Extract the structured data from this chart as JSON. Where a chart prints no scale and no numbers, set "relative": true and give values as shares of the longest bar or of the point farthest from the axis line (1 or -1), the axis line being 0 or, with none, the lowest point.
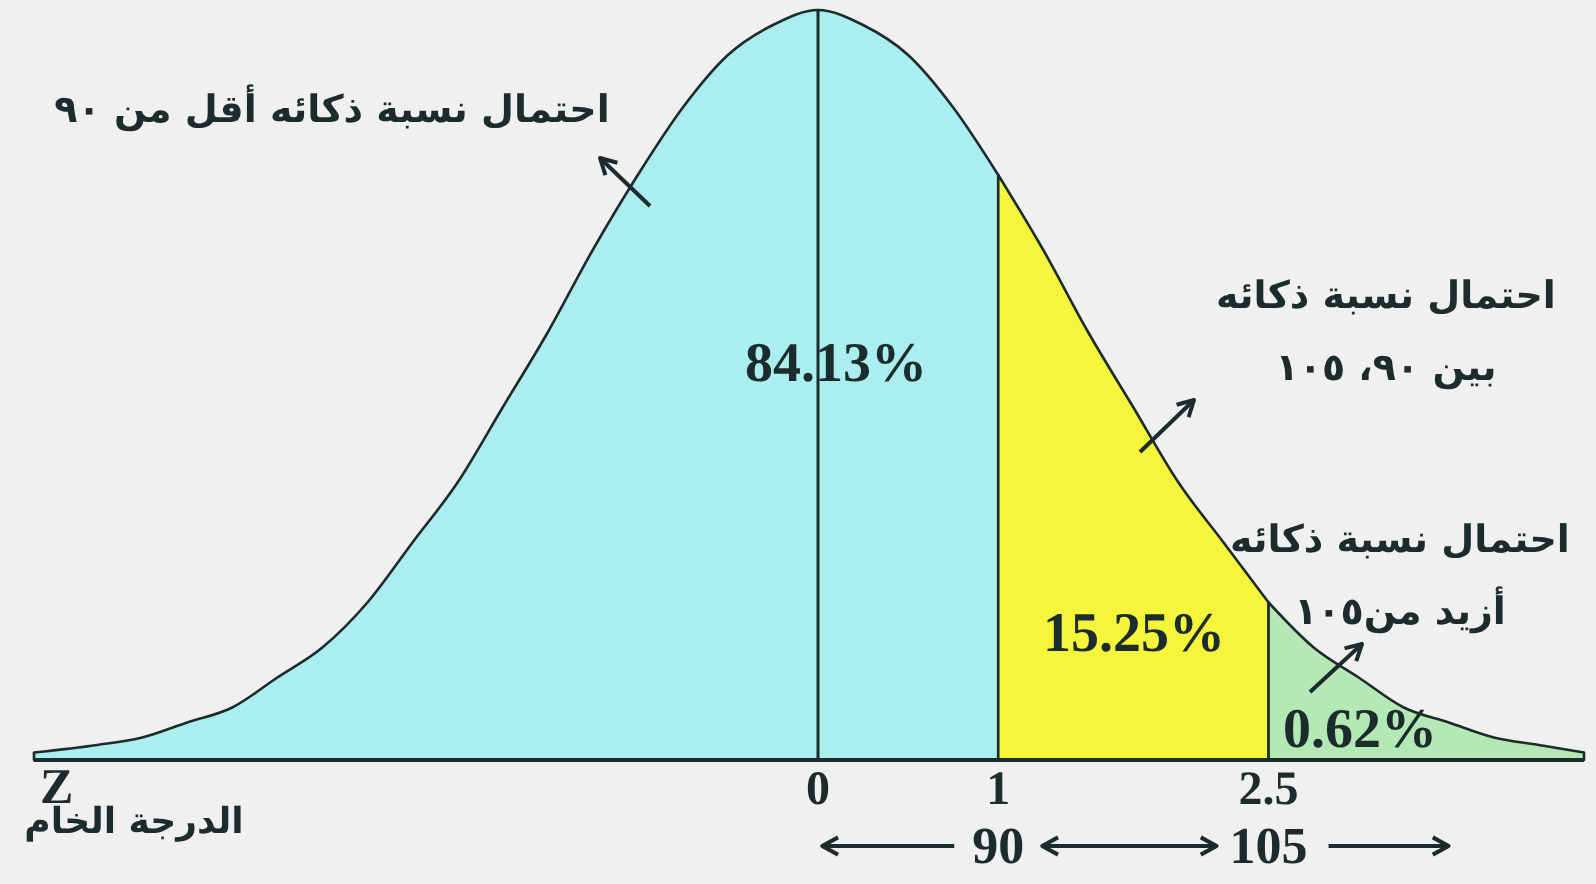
{
  "chart_data": {
    "type": "area",
    "relative": true,
    "xlim": [
      -4.35,
      4.25
    ],
    "xticks": [
      0,
      1,
      2.5
    ],
    "xlabel": "Z",
    "x2lim": [
      36.5,
      122.5
    ],
    "x2ticks": [
      90,
      105
    ],
    "x2label": "الدرجة الخام",
    "series": [
      {
        "color": "#aaeef0",
        "x": [
          -4.35,
          -4,
          -3.75,
          -3.5,
          -3.25,
          -3,
          -2.75,
          -2.5,
          -2.25,
          -2,
          -1.75,
          -1.5,
          -1.25,
          -1,
          -0.75,
          -0.5,
          -0.25,
          0,
          0.25,
          0.5,
          0.75,
          1
        ],
        "values": [
          0.01,
          0.02,
          0.03,
          0.05,
          0.07,
          0.11,
          0.15,
          0.21,
          0.29,
          0.37,
          0.47,
          0.57,
          0.68,
          0.78,
          0.87,
          0.94,
          0.98,
          1,
          0.98,
          0.94,
          0.87,
          0.78
        ]
      },
      {
        "color": "#f5f53c",
        "x": [
          1,
          1.25,
          1.5,
          1.75,
          2,
          2.25,
          2.5
        ],
        "values": [
          0.78,
          0.68,
          0.57,
          0.47,
          0.37,
          0.29,
          0.21
        ]
      },
      {
        "color": "#b4e8b4",
        "x": [
          2.5,
          2.75,
          3,
          3.25,
          3.5,
          3.75,
          4,
          4.25
        ],
        "values": [
          0.21,
          0.15,
          0.11,
          0.07,
          0.05,
          0.03,
          0.02,
          0.01
        ]
      }
    ],
    "ref_lines": [
      {
        "axis": "x",
        "value": 0
      }
    ],
    "annotations": [
      "84.13%",
      "15.25%",
      "0.62%",
      "احتمال نسبة ذكائه أقل من ٩٠",
      "احتمال نسبة ذكائه\nبين ٩٠، ١٠٥",
      "احتمال نسبة ذكائه\nأزيد من١٠٥"
    ]
  }
}
